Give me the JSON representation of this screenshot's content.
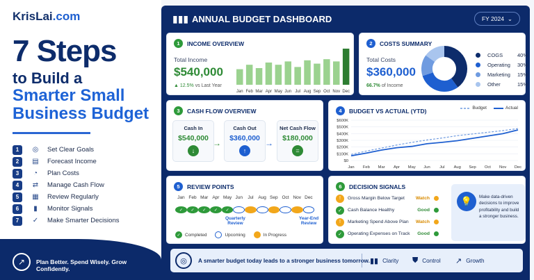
{
  "brand": {
    "name": "KrisLai",
    "tld": ".com"
  },
  "headline": {
    "line1": "7 Steps",
    "line2": "to Build a",
    "line3": "Smarter Small",
    "line4": "Business Budget"
  },
  "steps": [
    {
      "num": "1",
      "icon": "target-icon",
      "label": "Set Clear Goals"
    },
    {
      "num": "2",
      "icon": "document-icon",
      "label": "Forecast Income"
    },
    {
      "num": "3",
      "icon": "pie-icon",
      "label": "Plan Costs"
    },
    {
      "num": "4",
      "icon": "exchange-icon",
      "label": "Manage Cash Flow"
    },
    {
      "num": "5",
      "icon": "calendar-icon",
      "label": "Review Regularly"
    },
    {
      "num": "6",
      "icon": "bar-chart-icon",
      "label": "Monitor Signals"
    },
    {
      "num": "7",
      "icon": "check-circle-icon",
      "label": "Make Smarter Decisions"
    }
  ],
  "footer": {
    "tagline": "Plan Better. Spend Wisely. Grow Confidently."
  },
  "dashboard": {
    "title": "ANNUAL BUDGET DASHBOARD",
    "fy": "FY 2024"
  },
  "income": {
    "num": "1",
    "title": "INCOME OVERVIEW",
    "label": "Total Income",
    "value": "$540,000",
    "change": "▲ 12.5%",
    "change_suffix": "vs Last Year"
  },
  "costs": {
    "num": "2",
    "title": "COSTS SUMMARY",
    "label": "Total Costs",
    "value": "$360,000",
    "pct": "66.7%",
    "pct_suffix": "of Income"
  },
  "cashflow": {
    "num": "3",
    "title": "CASH FLOW OVERVIEW",
    "boxes": [
      {
        "title": "Cash In",
        "value": "$540,000"
      },
      {
        "title": "Cash Out",
        "value": "$360,000"
      },
      {
        "title": "Net Cash Flow",
        "value": "$180,000"
      }
    ]
  },
  "bva": {
    "num": "4",
    "title": "BUDGET VS ACTUAL (YTD)",
    "legend_budget": "Budget",
    "legend_actual": "Actual"
  },
  "review": {
    "num": "5",
    "title": "REVIEW POINTS",
    "months": [
      "Jan",
      "Feb",
      "Mar",
      "Apr",
      "May",
      "Jun",
      "Jul",
      "Aug",
      "Sep",
      "Oct",
      "Nov",
      "Dec"
    ],
    "status": [
      "completed",
      "completed",
      "completed",
      "completed",
      "completed",
      "upcoming",
      "progress",
      "upcoming",
      "progress",
      "upcoming",
      "progress",
      "upcoming"
    ],
    "note_quarterly": "Quarterly\nReview",
    "note_yearend": "Year-End\nReview",
    "legend": {
      "completed": "Completed",
      "upcoming": "Upcoming",
      "progress": "In Progress"
    }
  },
  "signals": {
    "num": "6",
    "title": "DECISION SIGNALS",
    "items": [
      {
        "label": "Gross Margin Below Target",
        "status": "Watch",
        "kind": "warn"
      },
      {
        "label": "Cash Balance Healthy",
        "status": "Good",
        "kind": "good"
      },
      {
        "label": "Marketing Spend Above Plan",
        "status": "Watch",
        "kind": "warn"
      },
      {
        "label": "Operating Expenses on Track",
        "status": "Good",
        "kind": "good"
      }
    ],
    "tip": "Make data-driven decisions to improve profitability and build a stronger business."
  },
  "bottom_bar": {
    "message": "A smarter budget today leads to a stronger business tomorrow.",
    "items": [
      "Clarity",
      "Control",
      "Growth"
    ]
  },
  "colors": {
    "navy": "#0c2a6a",
    "blue": "#1e5fd0",
    "green": "#2e9a3a",
    "orange": "#f2a71b"
  },
  "chart_data": [
    {
      "type": "bar",
      "title": "",
      "categories": [
        "Jan",
        "Feb",
        "Mar",
        "Apr",
        "May",
        "Jun",
        "Jul",
        "Aug",
        "Sep",
        "Oct",
        "Nov",
        "Dec"
      ],
      "values": [
        28,
        36,
        30,
        40,
        36,
        42,
        32,
        44,
        38,
        46,
        42,
        65
      ],
      "highlight_last": true
    },
    {
      "type": "pie",
      "donut": true,
      "slices": [
        {
          "name": "COGS",
          "value": 40,
          "label": "40%",
          "color": "#0d2c6b"
        },
        {
          "name": "Operating",
          "value": 30,
          "label": "30%",
          "color": "#1e5fd0"
        },
        {
          "name": "Marketing",
          "value": 15,
          "label": "15%",
          "color": "#6f9be0"
        },
        {
          "name": "Other",
          "value": 15,
          "label": "15%",
          "color": "#a9c5ee"
        }
      ]
    },
    {
      "type": "line",
      "categories": [
        "Jan",
        "Feb",
        "Mar",
        "Apr",
        "May",
        "Jun",
        "Jul",
        "Aug",
        "Sep",
        "Oct",
        "Nov",
        "Dec"
      ],
      "yticks": [
        "$0",
        "$100K",
        "$200K",
        "$300K",
        "$400K",
        "$500K",
        "$600K"
      ],
      "ylim": [
        0,
        600000
      ],
      "series": [
        {
          "name": "Budget",
          "values": [
            90000,
            140000,
            185000,
            230000,
            270000,
            305000,
            335000,
            370000,
            395000,
            420000,
            445000,
            475000
          ]
        },
        {
          "name": "Actual",
          "values": [
            70000,
            110000,
            155000,
            190000,
            210000,
            250000,
            270000,
            295000,
            330000,
            365000,
            400000,
            455000
          ]
        }
      ]
    }
  ]
}
